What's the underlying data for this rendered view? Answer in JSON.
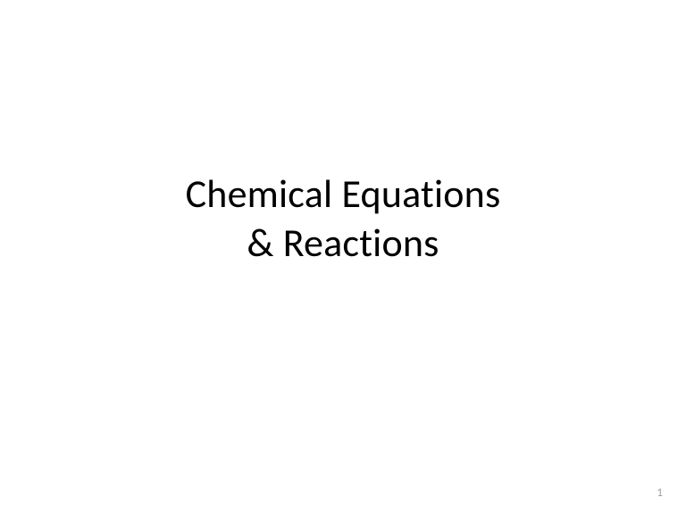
{
  "slide": {
    "title_line1": "Chemical Equations",
    "title_line2": "& Reactions",
    "page_number": "1",
    "background_color": "#ffffff",
    "title_color": "#000000",
    "title_fontsize": 44,
    "page_number_color": "#a0a0a0",
    "page_number_fontsize": 13
  }
}
